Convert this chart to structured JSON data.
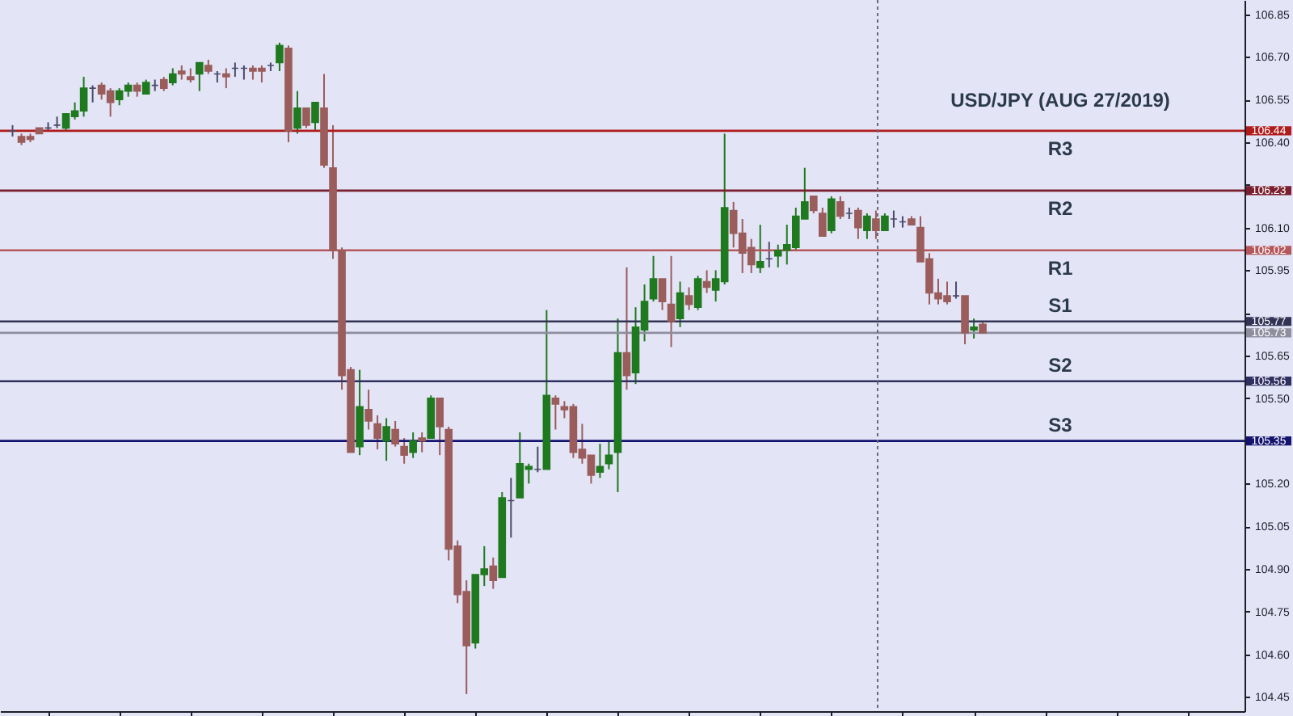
{
  "chart_data": {
    "type": "candlestick",
    "title": "USD/JPY (AUG 27/2019)",
    "categories": [
      null,
      null,
      null,
      null,
      null,
      null,
      null,
      null,
      null,
      null,
      null,
      null,
      null,
      null,
      null,
      null,
      null,
      null,
      null,
      null,
      null,
      null,
      null,
      null,
      null,
      null,
      null,
      null,
      null,
      null,
      null,
      null,
      null,
      null,
      null,
      null,
      null,
      null,
      null,
      null,
      null,
      null,
      null,
      null,
      null,
      null,
      null,
      null,
      null,
      null,
      null,
      null,
      null,
      null,
      null,
      null,
      null,
      null,
      null,
      null,
      null,
      null,
      null,
      null,
      null,
      null,
      null,
      null,
      null,
      null,
      null,
      null,
      null,
      null,
      null,
      null,
      null,
      null,
      null,
      null,
      null,
      null,
      null,
      null,
      null,
      null,
      null,
      null,
      null,
      null,
      null,
      null,
      null,
      null,
      null,
      null,
      null,
      null,
      null,
      null,
      null,
      null,
      null,
      null,
      null,
      null,
      null,
      null,
      null,
      null,
      null,
      null,
      null,
      null,
      null,
      null,
      null,
      null,
      null,
      null,
      null,
      null,
      null,
      null,
      null,
      null,
      null,
      null,
      null,
      null,
      null,
      null,
      null,
      null,
      null,
      null,
      null,
      null
    ],
    "ohlc": [
      [
        106.44,
        106.46,
        106.42,
        106.44
      ],
      [
        106.42,
        106.43,
        106.39,
        106.4
      ],
      [
        106.42,
        106.43,
        106.4,
        106.41
      ],
      [
        106.45,
        106.45,
        106.43,
        106.43
      ],
      [
        106.45,
        106.47,
        106.44,
        106.45
      ],
      [
        106.46,
        106.49,
        106.45,
        106.46
      ],
      [
        106.45,
        106.5,
        106.44,
        106.5
      ],
      [
        106.49,
        106.54,
        106.48,
        106.51
      ],
      [
        106.51,
        106.63,
        106.49,
        106.59
      ],
      [
        106.59,
        106.6,
        106.54,
        106.59
      ],
      [
        106.6,
        106.61,
        106.55,
        106.57
      ],
      [
        106.58,
        106.59,
        106.49,
        106.54
      ],
      [
        106.55,
        106.59,
        106.53,
        106.58
      ],
      [
        106.58,
        106.61,
        106.56,
        106.6
      ],
      [
        106.6,
        106.61,
        106.56,
        106.58
      ],
      [
        106.57,
        106.62,
        106.57,
        106.61
      ],
      [
        106.6,
        106.62,
        106.58,
        106.6
      ],
      [
        106.62,
        106.63,
        106.58,
        106.59
      ],
      [
        106.61,
        106.66,
        106.6,
        106.64
      ],
      [
        106.65,
        106.67,
        106.62,
        106.64
      ],
      [
        106.63,
        106.66,
        106.61,
        106.62
      ],
      [
        106.64,
        106.68,
        106.58,
        106.68
      ],
      [
        106.67,
        106.69,
        106.64,
        106.65
      ],
      [
        106.64,
        106.65,
        106.61,
        106.64
      ],
      [
        106.64,
        106.66,
        106.59,
        106.63
      ],
      [
        106.66,
        106.68,
        106.63,
        106.66
      ],
      [
        106.66,
        106.67,
        106.62,
        106.66
      ],
      [
        106.66,
        106.67,
        106.62,
        106.65
      ],
      [
        106.66,
        106.67,
        106.61,
        106.65
      ],
      [
        106.67,
        106.68,
        106.65,
        106.67
      ],
      [
        106.68,
        106.75,
        106.65,
        106.74
      ],
      [
        106.73,
        106.74,
        106.4,
        106.44
      ],
      [
        106.45,
        106.58,
        106.43,
        106.52
      ],
      [
        106.52,
        106.52,
        106.45,
        106.46
      ],
      [
        106.47,
        106.54,
        106.44,
        106.54
      ],
      [
        106.52,
        106.64,
        106.31,
        106.32
      ],
      [
        106.31,
        106.46,
        105.99,
        106.02
      ],
      [
        106.02,
        106.03,
        105.53,
        105.58
      ],
      [
        105.6,
        105.61,
        105.31,
        105.31
      ],
      [
        105.33,
        105.6,
        105.3,
        105.47
      ],
      [
        105.46,
        105.53,
        105.39,
        105.42
      ],
      [
        105.41,
        105.44,
        105.32,
        105.36
      ],
      [
        105.35,
        105.43,
        105.28,
        105.4
      ],
      [
        105.39,
        105.42,
        105.33,
        105.34
      ],
      [
        105.33,
        105.36,
        105.27,
        105.3
      ],
      [
        105.31,
        105.38,
        105.29,
        105.35
      ],
      [
        105.36,
        105.38,
        105.31,
        105.35
      ],
      [
        105.36,
        105.51,
        105.36,
        105.5
      ],
      [
        105.5,
        105.5,
        105.3,
        105.4
      ],
      [
        105.39,
        105.4,
        104.93,
        104.97
      ],
      [
        104.98,
        105.0,
        104.78,
        104.81
      ],
      [
        104.82,
        104.86,
        104.46,
        104.63
      ],
      [
        104.64,
        104.88,
        104.62,
        104.88
      ],
      [
        104.88,
        104.98,
        104.84,
        104.9
      ],
      [
        104.91,
        104.94,
        104.83,
        104.86
      ],
      [
        104.87,
        105.17,
        104.87,
        105.15
      ],
      [
        105.14,
        105.22,
        105.01,
        105.14
      ],
      [
        105.15,
        105.38,
        105.15,
        105.27
      ],
      [
        105.25,
        105.27,
        105.2,
        105.26
      ],
      [
        105.25,
        105.33,
        105.24,
        105.25
      ],
      [
        105.25,
        105.81,
        105.25,
        105.51
      ],
      [
        105.5,
        105.51,
        105.39,
        105.48
      ],
      [
        105.47,
        105.49,
        105.43,
        105.46
      ],
      [
        105.47,
        105.48,
        105.29,
        105.31
      ],
      [
        105.32,
        105.41,
        105.27,
        105.29
      ],
      [
        105.3,
        105.3,
        105.2,
        105.23
      ],
      [
        105.24,
        105.34,
        105.22,
        105.26
      ],
      [
        105.27,
        105.35,
        105.25,
        105.3
      ],
      [
        105.31,
        105.78,
        105.17,
        105.66
      ],
      [
        105.66,
        105.96,
        105.53,
        105.58
      ],
      [
        105.59,
        105.82,
        105.55,
        105.75
      ],
      [
        105.74,
        105.9,
        105.7,
        105.84
      ],
      [
        105.85,
        106.0,
        105.84,
        105.92
      ],
      [
        105.92,
        105.92,
        105.81,
        105.84
      ],
      [
        105.83,
        106.0,
        105.68,
        105.77
      ],
      [
        105.78,
        105.91,
        105.75,
        105.87
      ],
      [
        105.86,
        105.89,
        105.81,
        105.83
      ],
      [
        105.82,
        105.93,
        105.81,
        105.92
      ],
      [
        105.91,
        105.95,
        105.87,
        105.89
      ],
      [
        105.88,
        105.95,
        105.84,
        105.92
      ],
      [
        105.91,
        106.43,
        105.9,
        106.17
      ],
      [
        106.16,
        106.19,
        106.03,
        106.08
      ],
      [
        106.08,
        106.13,
        105.94,
        106.01
      ],
      [
        106.03,
        106.06,
        105.94,
        105.97
      ],
      [
        105.96,
        106.11,
        105.94,
        105.98
      ],
      [
        105.99,
        106.05,
        105.96,
        105.99
      ],
      [
        106.0,
        106.04,
        105.96,
        106.02
      ],
      [
        106.02,
        106.11,
        105.97,
        106.04
      ],
      [
        106.03,
        106.17,
        106.02,
        106.14
      ],
      [
        106.13,
        106.31,
        106.13,
        106.19
      ],
      [
        106.21,
        106.21,
        106.15,
        106.16
      ],
      [
        106.15,
        106.17,
        106.07,
        106.07
      ],
      [
        106.09,
        106.21,
        106.08,
        106.2
      ],
      [
        106.19,
        106.21,
        106.13,
        106.14
      ],
      [
        106.15,
        106.17,
        106.13,
        106.15
      ],
      [
        106.16,
        106.17,
        106.06,
        106.1
      ],
      [
        106.09,
        106.15,
        106.06,
        106.14
      ],
      [
        106.13,
        106.16,
        106.06,
        106.09
      ],
      [
        106.09,
        106.15,
        106.09,
        106.14
      ],
      [
        106.13,
        106.16,
        106.1,
        106.13
      ],
      [
        106.12,
        106.14,
        106.1,
        106.12
      ],
      [
        106.13,
        106.14,
        106.11,
        106.11
      ],
      [
        106.1,
        106.14,
        105.98,
        105.98
      ],
      [
        105.99,
        106.01,
        105.83,
        105.87
      ],
      [
        105.87,
        105.92,
        105.83,
        105.85
      ],
      [
        105.86,
        105.91,
        105.83,
        105.84
      ],
      [
        105.86,
        105.91,
        105.85,
        105.86
      ],
      [
        105.86,
        105.86,
        105.69,
        105.73
      ],
      [
        105.74,
        105.78,
        105.71,
        105.75
      ],
      [
        105.76,
        105.77,
        105.73,
        105.73
      ],
      null,
      null,
      null,
      null,
      null,
      null,
      null,
      null,
      null,
      null,
      null,
      null,
      null,
      null,
      null,
      null,
      null,
      null,
      null,
      null,
      null,
      null,
      null,
      null,
      null,
      null,
      null,
      null
    ],
    "colors": [
      "#4a4a6a",
      "#9b5c5c",
      "#9b5c5c",
      "#9b5c5c",
      "#4a4a6a",
      "#4a4a6a",
      "#1f7a1f",
      "#1f7a1f",
      "#1f7a1f",
      "#4a4a6a",
      "#9b5c5c",
      "#9b5c5c",
      "#1f7a1f",
      "#1f7a1f",
      "#9b5c5c",
      "#1f7a1f",
      "#4a4a6a",
      "#9b5c5c",
      "#1f7a1f",
      "#9b5c5c",
      "#9b5c5c",
      "#1f7a1f",
      "#9b5c5c",
      "#4a4a6a",
      "#9b5c5c",
      "#4a4a6a",
      "#4a4a6a",
      "#9b5c5c",
      "#9b5c5c",
      "#4a4a6a",
      "#1f7a1f",
      "#9b5c5c",
      "#1f7a1f",
      "#9b5c5c",
      "#1f7a1f",
      "#9b5c5c",
      "#9b5c5c",
      "#9b5c5c",
      "#9b5c5c",
      "#1f7a1f",
      "#9b5c5c",
      "#9b5c5c",
      "#1f7a1f",
      "#9b5c5c",
      "#9b5c5c",
      "#1f7a1f",
      "#9b5c5c",
      "#1f7a1f",
      "#9b5c5c",
      "#9b5c5c",
      "#9b5c5c",
      "#9b5c5c",
      "#1f7a1f",
      "#1f7a1f",
      "#9b5c5c",
      "#1f7a1f",
      "#4a4a6a",
      "#1f7a1f",
      "#1f7a1f",
      "#4a4a6a",
      "#1f7a1f",
      "#9b5c5c",
      "#9b5c5c",
      "#9b5c5c",
      "#9b5c5c",
      "#9b5c5c",
      "#1f7a1f",
      "#1f7a1f",
      "#1f7a1f",
      "#9b5c5c",
      "#1f7a1f",
      "#1f7a1f",
      "#1f7a1f",
      "#9b5c5c",
      "#9b5c5c",
      "#1f7a1f",
      "#9b5c5c",
      "#1f7a1f",
      "#9b5c5c",
      "#1f7a1f",
      "#1f7a1f",
      "#9b5c5c",
      "#9b5c5c",
      "#9b5c5c",
      "#1f7a1f",
      "#4a4a6a",
      "#1f7a1f",
      "#1f7a1f",
      "#1f7a1f",
      "#1f7a1f",
      "#9b5c5c",
      "#9b5c5c",
      "#1f7a1f",
      "#9b5c5c",
      "#4a4a6a",
      "#9b5c5c",
      "#1f7a1f",
      "#9b5c5c",
      "#1f7a1f",
      "#4a4a6a",
      "#4a4a6a",
      "#9b5c5c",
      "#9b5c5c",
      "#9b5c5c",
      "#9b5c5c",
      "#9b5c5c",
      "#4a4a6a",
      "#9b5c5c",
      "#1f7a1f",
      "#9b5c5c",
      null,
      null,
      null,
      null,
      null,
      null,
      null,
      null,
      null,
      null,
      null,
      null,
      null,
      null,
      null,
      null,
      null,
      null,
      null,
      null,
      null,
      null,
      null,
      null,
      null,
      null,
      null,
      null
    ],
    "ylim": [
      104.4,
      106.9
    ],
    "yticks": [
      104.45,
      {
        "value": 104.6,
        "label": "104.60"
      },
      104.75,
      {
        "value": 104.9,
        "label": "104.90"
      },
      105.05,
      {
        "value": 105.2,
        "label": "105.20"
      },
      {
        "value": 105.35,
        "label": null
      },
      {
        "value": 105.5,
        "label": "105.50"
      },
      105.65,
      {
        "value": 105.8,
        "label": null
      },
      105.95,
      {
        "value": 106.1,
        "label": "106.10"
      },
      {
        "value": 106.25,
        "label": null
      },
      {
        "value": 106.4,
        "label": "106.40"
      },
      106.55,
      {
        "value": 106.7,
        "label": "106.70"
      },
      106.85
    ],
    "ref_lines": [
      {
        "axis": "y",
        "value": 106.44,
        "label": "R3",
        "color": "#b01c1c"
      },
      {
        "axis": "y",
        "value": 106.23,
        "label": "R2",
        "color": "#7a1f2e"
      },
      {
        "axis": "y",
        "value": 106.02,
        "label": "R1",
        "color": "#b5585c"
      },
      {
        "axis": "y",
        "value": 105.77,
        "label": "S1",
        "color": "#333355"
      },
      {
        "axis": "y",
        "value": 105.73,
        "color": "#8e8e9e"
      },
      {
        "axis": "y",
        "value": 105.56,
        "label": "S2",
        "color": "#2f2f60"
      },
      {
        "axis": "y",
        "value": 105.35,
        "label": "S3",
        "color": "#141470"
      }
    ],
    "annotations": [
      "106.44",
      "106.23",
      "106.02",
      "105.77",
      "105.73",
      "105.56",
      "105.35"
    ],
    "tick_labels": "y"
  }
}
